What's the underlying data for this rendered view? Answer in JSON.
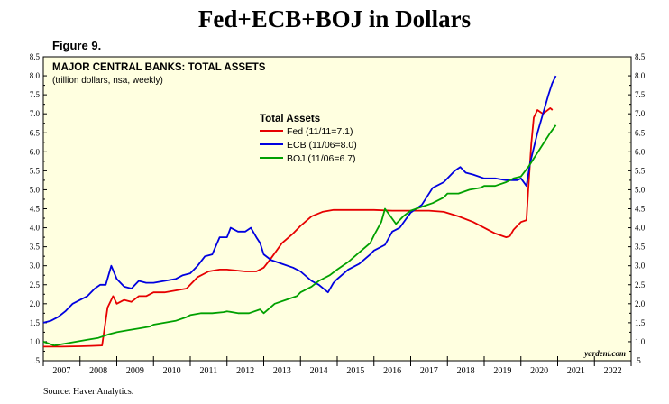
{
  "header": {
    "title": "Fed+ECB+BOJ in Dollars",
    "figure_label": "Figure 9."
  },
  "footer": {
    "source": "Source: Haver Analytics."
  },
  "chart_data": {
    "type": "line",
    "title": "MAJOR CENTRAL BANKS: TOTAL ASSETS",
    "subtitle": "(trillion dollars, nsa, weekly)",
    "legend_title": "Total Assets",
    "watermark": "yardeni.com",
    "background": "#ffffe0",
    "ylim": [
      0.5,
      8.5
    ],
    "yticks": [
      ".5",
      "1.0",
      "1.5",
      "2.0",
      "2.5",
      "3.0",
      "3.5",
      "4.0",
      "4.5",
      "5.0",
      "5.5",
      "6.0",
      "6.5",
      "7.0",
      "7.5",
      "8.0",
      "8.5"
    ],
    "xlim": [
      2007,
      2023
    ],
    "xtick_labels": [
      "2007",
      "2008",
      "2009",
      "2010",
      "2011",
      "2012",
      "2013",
      "2014",
      "2015",
      "2016",
      "2017",
      "2018",
      "2019",
      "2020",
      "2021",
      "2022"
    ],
    "series": [
      {
        "name": "Fed (11/11=7.1)",
        "color": "#e60000",
        "points": [
          [
            2007.0,
            0.87
          ],
          [
            2007.5,
            0.87
          ],
          [
            2008.0,
            0.88
          ],
          [
            2008.3,
            0.89
          ],
          [
            2008.6,
            0.9
          ],
          [
            2008.75,
            1.9
          ],
          [
            2008.9,
            2.2
          ],
          [
            2009.0,
            2.0
          ],
          [
            2009.2,
            2.1
          ],
          [
            2009.4,
            2.05
          ],
          [
            2009.6,
            2.2
          ],
          [
            2009.8,
            2.2
          ],
          [
            2010.0,
            2.3
          ],
          [
            2010.3,
            2.3
          ],
          [
            2010.6,
            2.35
          ],
          [
            2010.9,
            2.4
          ],
          [
            2011.0,
            2.5
          ],
          [
            2011.2,
            2.7
          ],
          [
            2011.5,
            2.85
          ],
          [
            2011.8,
            2.9
          ],
          [
            2012.0,
            2.9
          ],
          [
            2012.5,
            2.85
          ],
          [
            2012.8,
            2.85
          ],
          [
            2013.0,
            2.95
          ],
          [
            2013.2,
            3.2
          ],
          [
            2013.5,
            3.6
          ],
          [
            2013.8,
            3.85
          ],
          [
            2014.0,
            4.05
          ],
          [
            2014.3,
            4.3
          ],
          [
            2014.6,
            4.42
          ],
          [
            2014.9,
            4.47
          ],
          [
            2015.5,
            4.47
          ],
          [
            2016.0,
            4.47
          ],
          [
            2016.5,
            4.45
          ],
          [
            2017.0,
            4.45
          ],
          [
            2017.5,
            4.45
          ],
          [
            2017.9,
            4.42
          ],
          [
            2018.3,
            4.3
          ],
          [
            2018.7,
            4.15
          ],
          [
            2019.0,
            4.0
          ],
          [
            2019.3,
            3.85
          ],
          [
            2019.6,
            3.75
          ],
          [
            2019.7,
            3.78
          ],
          [
            2019.8,
            3.95
          ],
          [
            2020.0,
            4.15
          ],
          [
            2020.15,
            4.2
          ],
          [
            2020.2,
            5.0
          ],
          [
            2020.28,
            6.2
          ],
          [
            2020.35,
            6.9
          ],
          [
            2020.45,
            7.1
          ],
          [
            2020.6,
            7.0
          ],
          [
            2020.8,
            7.15
          ],
          [
            2020.86,
            7.1
          ]
        ]
      },
      {
        "name": "ECB (11/06=8.0)",
        "color": "#0000e0",
        "points": [
          [
            2007.0,
            1.5
          ],
          [
            2007.2,
            1.55
          ],
          [
            2007.4,
            1.65
          ],
          [
            2007.6,
            1.8
          ],
          [
            2007.8,
            2.0
          ],
          [
            2008.0,
            2.1
          ],
          [
            2008.2,
            2.2
          ],
          [
            2008.4,
            2.4
          ],
          [
            2008.55,
            2.5
          ],
          [
            2008.7,
            2.5
          ],
          [
            2008.85,
            3.0
          ],
          [
            2009.0,
            2.65
          ],
          [
            2009.2,
            2.45
          ],
          [
            2009.4,
            2.4
          ],
          [
            2009.6,
            2.6
          ],
          [
            2009.8,
            2.55
          ],
          [
            2010.0,
            2.55
          ],
          [
            2010.3,
            2.6
          ],
          [
            2010.6,
            2.65
          ],
          [
            2010.8,
            2.75
          ],
          [
            2011.0,
            2.8
          ],
          [
            2011.2,
            3.0
          ],
          [
            2011.4,
            3.25
          ],
          [
            2011.6,
            3.3
          ],
          [
            2011.8,
            3.75
          ],
          [
            2012.0,
            3.75
          ],
          [
            2012.1,
            4.0
          ],
          [
            2012.3,
            3.9
          ],
          [
            2012.5,
            3.9
          ],
          [
            2012.65,
            4.0
          ],
          [
            2012.8,
            3.75
          ],
          [
            2012.9,
            3.6
          ],
          [
            2013.0,
            3.3
          ],
          [
            2013.2,
            3.15
          ],
          [
            2013.5,
            3.05
          ],
          [
            2013.8,
            2.95
          ],
          [
            2014.0,
            2.85
          ],
          [
            2014.3,
            2.6
          ],
          [
            2014.5,
            2.5
          ],
          [
            2014.75,
            2.3
          ],
          [
            2014.9,
            2.55
          ],
          [
            2015.0,
            2.65
          ],
          [
            2015.3,
            2.9
          ],
          [
            2015.6,
            3.05
          ],
          [
            2015.9,
            3.3
          ],
          [
            2016.0,
            3.4
          ],
          [
            2016.3,
            3.55
          ],
          [
            2016.5,
            3.9
          ],
          [
            2016.7,
            4.0
          ],
          [
            2016.85,
            4.2
          ],
          [
            2017.0,
            4.4
          ],
          [
            2017.3,
            4.6
          ],
          [
            2017.6,
            5.05
          ],
          [
            2017.9,
            5.2
          ],
          [
            2018.0,
            5.3
          ],
          [
            2018.2,
            5.5
          ],
          [
            2018.35,
            5.6
          ],
          [
            2018.5,
            5.45
          ],
          [
            2018.7,
            5.4
          ],
          [
            2019.0,
            5.3
          ],
          [
            2019.3,
            5.3
          ],
          [
            2019.6,
            5.25
          ],
          [
            2019.9,
            5.25
          ],
          [
            2020.0,
            5.3
          ],
          [
            2020.15,
            5.1
          ],
          [
            2020.25,
            5.7
          ],
          [
            2020.45,
            6.5
          ],
          [
            2020.6,
            7.0
          ],
          [
            2020.75,
            7.5
          ],
          [
            2020.85,
            7.8
          ],
          [
            2020.95,
            8.0
          ]
        ]
      },
      {
        "name": "BOJ (11/06=6.7)",
        "color": "#00a000",
        "points": [
          [
            2007.0,
            1.0
          ],
          [
            2007.3,
            0.9
          ],
          [
            2007.6,
            0.95
          ],
          [
            2007.9,
            1.0
          ],
          [
            2008.2,
            1.05
          ],
          [
            2008.5,
            1.1
          ],
          [
            2008.8,
            1.2
          ],
          [
            2009.0,
            1.25
          ],
          [
            2009.3,
            1.3
          ],
          [
            2009.6,
            1.35
          ],
          [
            2009.9,
            1.4
          ],
          [
            2010.0,
            1.45
          ],
          [
            2010.3,
            1.5
          ],
          [
            2010.6,
            1.55
          ],
          [
            2010.9,
            1.65
          ],
          [
            2011.0,
            1.7
          ],
          [
            2011.3,
            1.75
          ],
          [
            2011.6,
            1.75
          ],
          [
            2011.9,
            1.78
          ],
          [
            2012.0,
            1.8
          ],
          [
            2012.3,
            1.75
          ],
          [
            2012.6,
            1.75
          ],
          [
            2012.9,
            1.85
          ],
          [
            2013.0,
            1.75
          ],
          [
            2013.3,
            2.0
          ],
          [
            2013.6,
            2.1
          ],
          [
            2013.9,
            2.2
          ],
          [
            2014.0,
            2.3
          ],
          [
            2014.3,
            2.45
          ],
          [
            2014.5,
            2.6
          ],
          [
            2014.8,
            2.75
          ],
          [
            2015.0,
            2.9
          ],
          [
            2015.3,
            3.1
          ],
          [
            2015.6,
            3.35
          ],
          [
            2015.9,
            3.6
          ],
          [
            2016.0,
            3.8
          ],
          [
            2016.2,
            4.15
          ],
          [
            2016.3,
            4.5
          ],
          [
            2016.45,
            4.3
          ],
          [
            2016.6,
            4.1
          ],
          [
            2016.8,
            4.3
          ],
          [
            2017.0,
            4.45
          ],
          [
            2017.3,
            4.55
          ],
          [
            2017.6,
            4.65
          ],
          [
            2017.9,
            4.8
          ],
          [
            2018.0,
            4.9
          ],
          [
            2018.3,
            4.9
          ],
          [
            2018.6,
            5.0
          ],
          [
            2018.9,
            5.05
          ],
          [
            2019.0,
            5.1
          ],
          [
            2019.3,
            5.1
          ],
          [
            2019.6,
            5.2
          ],
          [
            2019.8,
            5.3
          ],
          [
            2020.0,
            5.35
          ],
          [
            2020.2,
            5.6
          ],
          [
            2020.4,
            5.9
          ],
          [
            2020.6,
            6.2
          ],
          [
            2020.8,
            6.5
          ],
          [
            2020.95,
            6.7
          ]
        ]
      }
    ]
  }
}
